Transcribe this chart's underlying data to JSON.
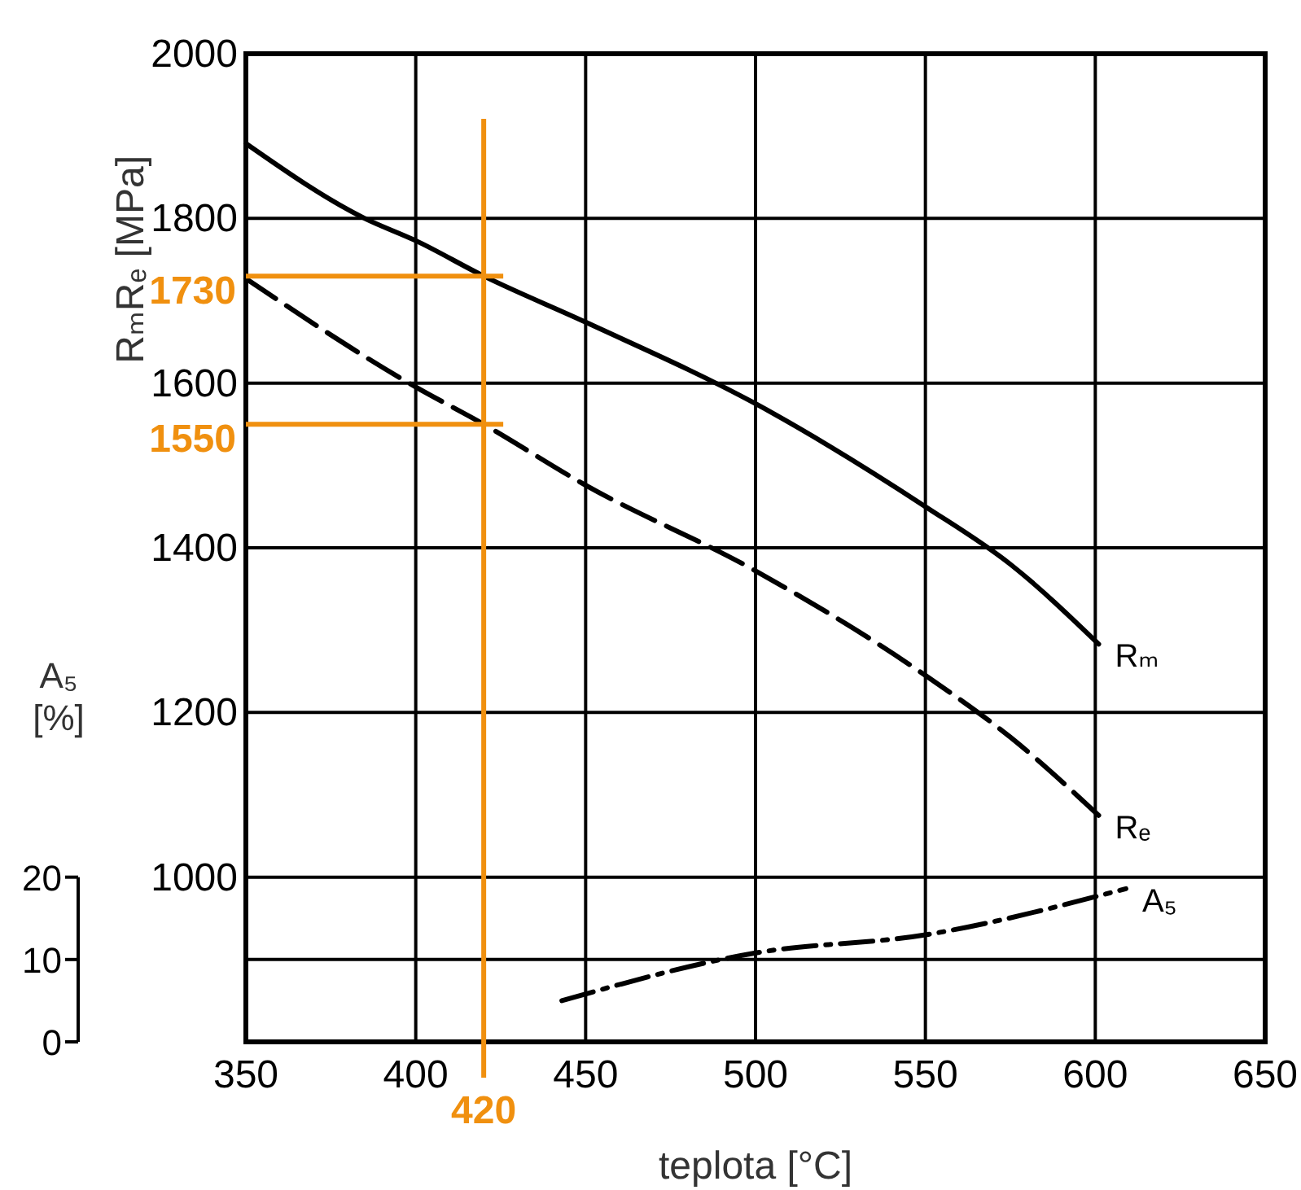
{
  "chart_data": {
    "type": "line",
    "xlabel": "teplota [°C]",
    "ylabel": "RₘRₑ [MPa]",
    "y2label": "A₅ [%]",
    "xlim": [
      350,
      650
    ],
    "xticks": [
      350,
      400,
      450,
      500,
      550,
      600,
      650
    ],
    "ylim": [
      800,
      2000
    ],
    "yticks": [
      {
        "value": 800,
        "label": null
      },
      {
        "value": 900,
        "label": null
      },
      1000,
      1200,
      1400,
      1600,
      1800,
      2000
    ],
    "y2lim": [
      0,
      120
    ],
    "y2ticks": [
      0,
      10,
      20
    ],
    "grid": true,
    "series": [
      {
        "name": "Rₘ",
        "color": "#000000",
        "line_style": "solid",
        "x": [
          350,
          385,
          400,
          420,
          450,
          500,
          550,
          575,
          601
        ],
        "values": [
          1891,
          1800,
          1773,
          1730,
          1674,
          1575,
          1450,
          1380,
          1283
        ]
      },
      {
        "name": "Rₑ",
        "color": "#000000",
        "line_style": "dashed",
        "x": [
          350,
          398,
          420,
          450,
          500,
          550,
          575,
          601
        ],
        "values": [
          1727,
          1600,
          1550,
          1476,
          1372,
          1245,
          1170,
          1075
        ]
      },
      {
        "name": "A₅",
        "color": "#000000",
        "line_style": "dashdot",
        "axis": "y2",
        "x": [
          443,
          500,
          550,
          609
        ],
        "values": [
          5,
          10.8,
          13,
          18.6
        ]
      }
    ],
    "ref_lines": [
      {
        "axis": "x",
        "value": 420,
        "label": "420",
        "color": "#f0900f"
      },
      {
        "axis": "y",
        "value": 1730,
        "label": "1730",
        "color": "#f0900f"
      },
      {
        "axis": "y",
        "value": 1550,
        "label": "1550",
        "color": "#f0900f"
      }
    ]
  }
}
